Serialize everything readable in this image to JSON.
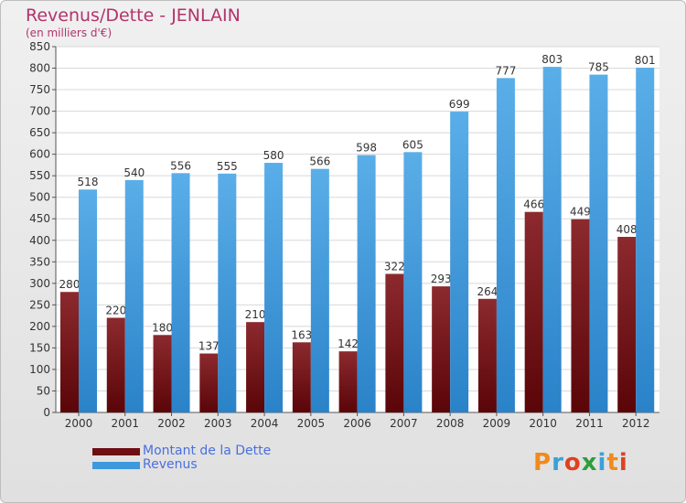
{
  "chart_data": {
    "type": "bar",
    "title": "Revenus/Dette - JENLAIN",
    "subtitle": "(en milliers d'€)",
    "categories": [
      "2000",
      "2001",
      "2002",
      "2003",
      "2004",
      "2005",
      "2006",
      "2007",
      "2008",
      "2009",
      "2010",
      "2011",
      "2012"
    ],
    "series": [
      {
        "name": "Montant de la Dette",
        "color": "#6e0f14",
        "values": [
          280,
          220,
          180,
          137,
          210,
          163,
          142,
          322,
          293,
          264,
          466,
          449,
          408
        ]
      },
      {
        "name": "Revenus",
        "color": "#3d98dd",
        "values": [
          518,
          540,
          556,
          555,
          580,
          566,
          598,
          605,
          699,
          777,
          803,
          785,
          801
        ]
      }
    ],
    "ylim": [
      0,
      850
    ],
    "yticks": [
      0,
      50,
      100,
      150,
      200,
      250,
      300,
      350,
      400,
      450,
      500,
      550,
      600,
      650,
      700,
      750,
      800,
      850
    ],
    "grid": true,
    "legend": "bottom-left"
  },
  "logo": {
    "text": "Proxiti",
    "colors": [
      "#f08a1c",
      "#3aa0d8",
      "#e04020",
      "#2e9e3a",
      "#3aa0d8",
      "#f08a1c",
      "#e04020"
    ]
  }
}
